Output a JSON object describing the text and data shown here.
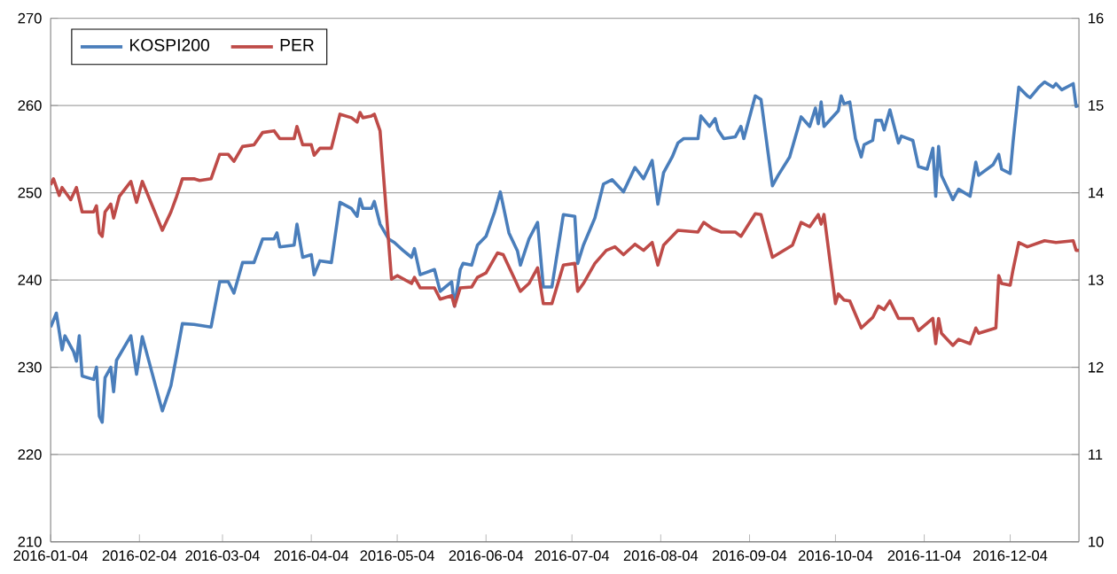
{
  "chart_data": {
    "type": "line",
    "xlim": [
      "2016-01-04",
      "2016-12-28"
    ],
    "xticks": [
      "2016-01-04",
      "2016-02-04",
      "2016-03-04",
      "2016-04-04",
      "2016-05-04",
      "2016-06-04",
      "2016-07-04",
      "2016-08-04",
      "2016-09-04",
      "2016-10-04",
      "2016-11-04",
      "2016-12-04"
    ],
    "ylim": [
      210,
      270
    ],
    "yticks": [
      210,
      220,
      230,
      240,
      250,
      260,
      270
    ],
    "y2lim": [
      10,
      16
    ],
    "y2ticks": [
      10,
      11,
      12,
      13,
      14,
      15,
      16
    ],
    "grid": "y",
    "legend": "top left",
    "series": [
      {
        "name": "KOSPI200",
        "color": "#4a7ebb",
        "x": [
          "2016-01-04",
          "2016-01-06",
          "2016-01-08",
          "2016-01-09",
          "2016-01-12",
          "2016-01-13",
          "2016-01-14",
          "2016-01-15",
          "2016-01-19",
          "2016-01-20",
          "2016-01-21",
          "2016-01-22",
          "2016-01-23",
          "2016-01-25",
          "2016-01-26",
          "2016-01-27",
          "2016-02-01",
          "2016-02-03",
          "2016-02-05",
          "2016-02-12",
          "2016-02-15",
          "2016-02-17",
          "2016-02-19",
          "2016-02-23",
          "2016-02-29",
          "2016-03-03",
          "2016-03-06",
          "2016-03-08",
          "2016-03-11",
          "2016-03-15",
          "2016-03-18",
          "2016-03-22",
          "2016-03-23",
          "2016-03-24",
          "2016-03-29",
          "2016-03-30",
          "2016-04-01",
          "2016-04-04",
          "2016-04-05",
          "2016-04-07",
          "2016-04-11",
          "2016-04-14",
          "2016-04-18",
          "2016-04-20",
          "2016-04-21",
          "2016-04-22",
          "2016-04-25",
          "2016-04-26",
          "2016-04-28",
          "2016-05-01",
          "2016-05-03",
          "2016-05-06",
          "2016-05-09",
          "2016-05-10",
          "2016-05-12",
          "2016-05-17",
          "2016-05-19",
          "2016-05-23",
          "2016-05-24",
          "2016-05-26",
          "2016-05-27",
          "2016-05-30",
          "2016-06-01",
          "2016-06-04",
          "2016-06-07",
          "2016-06-09",
          "2016-06-12",
          "2016-06-15",
          "2016-06-16",
          "2016-06-19",
          "2016-06-22",
          "2016-06-24",
          "2016-06-27",
          "2016-07-01",
          "2016-07-05",
          "2016-07-06",
          "2016-07-08",
          "2016-07-12",
          "2016-07-15",
          "2016-07-18",
          "2016-07-22",
          "2016-07-26",
          "2016-07-29",
          "2016-08-01",
          "2016-08-03",
          "2016-08-05",
          "2016-08-08",
          "2016-08-10",
          "2016-08-12",
          "2016-08-17",
          "2016-08-18",
          "2016-08-21",
          "2016-08-23",
          "2016-08-24",
          "2016-08-26",
          "2016-08-30",
          "2016-09-01",
          "2016-09-02",
          "2016-09-06",
          "2016-09-08",
          "2016-09-12",
          "2016-09-14",
          "2016-09-18",
          "2016-09-22",
          "2016-09-25",
          "2016-09-27",
          "2016-09-28",
          "2016-09-29",
          "2016-09-30",
          "2016-10-05",
          "2016-10-06",
          "2016-10-07",
          "2016-10-09",
          "2016-10-11",
          "2016-10-13",
          "2016-10-14",
          "2016-10-17",
          "2016-10-18",
          "2016-10-20",
          "2016-10-21",
          "2016-10-23",
          "2016-10-26",
          "2016-10-27",
          "2016-10-31",
          "2016-11-02",
          "2016-11-05",
          "2016-11-07",
          "2016-11-08",
          "2016-11-09",
          "2016-11-10",
          "2016-11-14",
          "2016-11-16",
          "2016-11-20",
          "2016-11-22",
          "2016-11-23",
          "2016-11-28",
          "2016-11-30",
          "2016-12-01",
          "2016-12-04",
          "2016-12-05",
          "2016-12-07",
          "2016-12-10",
          "2016-12-11",
          "2016-12-14",
          "2016-12-16",
          "2016-12-19",
          "2016-12-20",
          "2016-12-22",
          "2016-12-26",
          "2016-12-27",
          "2016-12-28"
        ],
        "values": [
          234.6,
          236.2,
          232,
          233.6,
          231.8,
          230.7,
          233.6,
          229,
          228.6,
          230,
          224.4,
          223.7,
          228.8,
          230,
          227.2,
          230.8,
          233.6,
          229.2,
          233.5,
          225,
          227.9,
          231.4,
          235,
          234.9,
          234.6,
          239.8,
          239.8,
          238.5,
          242,
          242,
          244.7,
          244.7,
          245.4,
          243.8,
          244,
          246.4,
          242.6,
          242.9,
          240.6,
          242.2,
          242,
          248.9,
          248.2,
          247.3,
          249.3,
          248.2,
          248.2,
          249,
          246.4,
          244.7,
          244.3,
          243.4,
          242.6,
          243.6,
          240.6,
          241.2,
          238.7,
          239.8,
          237,
          241.2,
          241.9,
          241.7,
          244,
          245,
          247.8,
          250.1,
          245.4,
          243.3,
          241.7,
          244.7,
          246.6,
          239.2,
          239.2,
          247.5,
          247.3,
          241.9,
          244,
          247.1,
          251,
          251.5,
          250.1,
          252.9,
          251.6,
          253.7,
          248.7,
          252.3,
          254.1,
          255.7,
          256.2,
          256.2,
          258.8,
          257.6,
          258.5,
          257.2,
          256.2,
          256.4,
          257.6,
          256.2,
          261.1,
          260.7,
          250.8,
          252,
          254.1,
          258.7,
          257.6,
          259.7,
          257.9,
          260.4,
          257.6,
          259.4,
          261.1,
          260.2,
          260.4,
          256.2,
          254.1,
          255.5,
          256,
          258.3,
          258.3,
          257.2,
          259.5,
          255.7,
          256.5,
          256,
          253,
          252.7,
          255.1,
          249.6,
          255.3,
          252,
          249.2,
          250.4,
          249.6,
          253.5,
          252,
          253.2,
          254.4,
          252.7,
          252.2,
          255.8,
          262.1,
          261.1,
          260.9,
          262.1,
          262.7,
          262.1,
          262.5,
          261.8,
          262.5,
          259.9,
          260
        ]
      },
      {
        "name": "PER",
        "color": "#be4b48",
        "axis": "y2",
        "x": [
          "2016-01-04",
          "2016-01-05",
          "2016-01-07",
          "2016-01-08",
          "2016-01-11",
          "2016-01-13",
          "2016-01-15",
          "2016-01-19",
          "2016-01-20",
          "2016-01-21",
          "2016-01-22",
          "2016-01-23",
          "2016-01-25",
          "2016-01-26",
          "2016-01-28",
          "2016-02-01",
          "2016-02-03",
          "2016-02-05",
          "2016-02-12",
          "2016-02-15",
          "2016-02-17",
          "2016-02-19",
          "2016-02-23",
          "2016-02-25",
          "2016-02-29",
          "2016-03-03",
          "2016-03-06",
          "2016-03-08",
          "2016-03-11",
          "2016-03-15",
          "2016-03-18",
          "2016-03-22",
          "2016-03-24",
          "2016-03-29",
          "2016-03-30",
          "2016-04-01",
          "2016-04-04",
          "2016-04-05",
          "2016-04-07",
          "2016-04-11",
          "2016-04-14",
          "2016-04-18",
          "2016-04-20",
          "2016-04-21",
          "2016-04-22",
          "2016-04-25",
          "2016-04-26",
          "2016-04-28",
          "2016-05-02",
          "2016-05-04",
          "2016-05-09",
          "2016-05-10",
          "2016-05-12",
          "2016-05-17",
          "2016-05-19",
          "2016-05-23",
          "2016-05-24",
          "2016-05-26",
          "2016-05-30",
          "2016-06-01",
          "2016-06-04",
          "2016-06-08",
          "2016-06-10",
          "2016-06-14",
          "2016-06-16",
          "2016-06-19",
          "2016-06-22",
          "2016-06-24",
          "2016-06-27",
          "2016-07-01",
          "2016-07-05",
          "2016-07-06",
          "2016-07-08",
          "2016-07-12",
          "2016-07-16",
          "2016-07-19",
          "2016-07-22",
          "2016-07-26",
          "2016-07-29",
          "2016-08-01",
          "2016-08-03",
          "2016-08-05",
          "2016-08-10",
          "2016-08-17",
          "2016-08-19",
          "2016-08-22",
          "2016-08-25",
          "2016-08-30",
          "2016-09-01",
          "2016-09-06",
          "2016-09-08",
          "2016-09-12",
          "2016-09-19",
          "2016-09-22",
          "2016-09-25",
          "2016-09-28",
          "2016-09-29",
          "2016-09-30",
          "2016-10-04",
          "2016-10-05",
          "2016-10-07",
          "2016-10-09",
          "2016-10-13",
          "2016-10-17",
          "2016-10-19",
          "2016-10-21",
          "2016-10-23",
          "2016-10-26",
          "2016-10-31",
          "2016-11-02",
          "2016-11-07",
          "2016-11-08",
          "2016-11-09",
          "2016-11-10",
          "2016-11-14",
          "2016-11-16",
          "2016-11-20",
          "2016-11-22",
          "2016-11-23",
          "2016-11-29",
          "2016-11-30",
          "2016-12-01",
          "2016-12-04",
          "2016-12-05",
          "2016-12-07",
          "2016-12-10",
          "2016-12-16",
          "2016-12-20",
          "2016-12-26",
          "2016-12-27",
          "2016-12-28"
        ],
        "values": [
          14.09,
          14.16,
          13.97,
          14.06,
          13.92,
          14.06,
          13.78,
          13.78,
          13.85,
          13.54,
          13.5,
          13.78,
          13.87,
          13.71,
          13.96,
          14.13,
          13.89,
          14.13,
          13.57,
          13.78,
          13.96,
          14.16,
          14.16,
          14.14,
          14.16,
          14.44,
          14.44,
          14.36,
          14.53,
          14.55,
          14.69,
          14.71,
          14.62,
          14.62,
          14.76,
          14.55,
          14.55,
          14.43,
          14.51,
          14.51,
          14.9,
          14.86,
          14.81,
          14.92,
          14.86,
          14.88,
          14.9,
          14.71,
          13.01,
          13.05,
          12.96,
          13.03,
          12.91,
          12.91,
          12.78,
          12.82,
          12.7,
          12.91,
          12.92,
          13.03,
          13.08,
          13.31,
          13.29,
          13.01,
          12.87,
          12.96,
          13.14,
          12.73,
          12.73,
          13.17,
          13.19,
          12.87,
          12.96,
          13.19,
          13.34,
          13.38,
          13.29,
          13.41,
          13.34,
          13.43,
          13.17,
          13.4,
          13.57,
          13.55,
          13.66,
          13.59,
          13.55,
          13.55,
          13.5,
          13.76,
          13.75,
          13.26,
          13.4,
          13.66,
          13.61,
          13.75,
          13.64,
          13.75,
          12.73,
          12.84,
          12.77,
          12.76,
          12.45,
          12.57,
          12.7,
          12.66,
          12.76,
          12.56,
          12.56,
          12.42,
          12.56,
          12.27,
          12.56,
          12.39,
          12.25,
          12.32,
          12.27,
          12.45,
          12.39,
          12.45,
          13.05,
          12.96,
          12.94,
          13.12,
          13.43,
          13.38,
          13.45,
          13.43,
          13.45,
          13.34,
          13.34
        ]
      }
    ]
  }
}
